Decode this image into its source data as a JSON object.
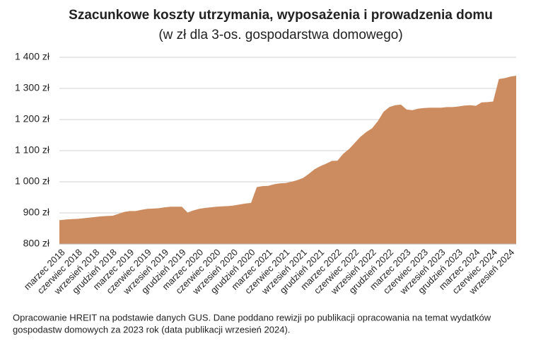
{
  "chart_data": {
    "type": "area",
    "title": "Szacunkowe koszty utrzymania, wyposażenia i prowadzenia domu",
    "subtitle": "(w zł dla 3-os. gospodarstwa domowego)",
    "note": "Opracowanie HREIT na podstawie danych GUS. Dane poddano rewizji po publikacji opracowania na temat wydatków gospodastw domowych za 2023 rok (data publikacji wrzesień 2024).",
    "categories": [
      "marzec 2018",
      null,
      null,
      "czerwiec 2018",
      null,
      null,
      "wrzesień 2018",
      null,
      null,
      "grudzień 2018",
      null,
      null,
      "marzec 2019",
      null,
      null,
      "czerwiec 2019",
      null,
      null,
      "wrzesień 2019",
      null,
      null,
      "grudzień 2019",
      null,
      null,
      "marzec 2020",
      null,
      null,
      "czerwiec 2020",
      null,
      null,
      "wrzesień 2020",
      null,
      null,
      "grudzień 2020",
      null,
      null,
      "marzec 2021",
      null,
      null,
      "czerwiec 2021",
      null,
      null,
      "wrzesień 2021",
      null,
      null,
      "grudzień 2021",
      null,
      null,
      "marzec 2022",
      null,
      null,
      "czerwiec 2022",
      null,
      null,
      "wrzesień 2022",
      null,
      null,
      "grudzień 2022",
      null,
      null,
      "marzec 2023",
      null,
      null,
      "czerwiec 2023",
      null,
      null,
      "wrzesień 2023",
      null,
      null,
      "grudzień 2023",
      null,
      null,
      "marzec 2024",
      null,
      null,
      "czerwiec 2024",
      null,
      null,
      "wrzesień 2024",
      null
    ],
    "values": [
      877,
      879,
      880,
      881,
      883,
      885,
      887,
      889,
      890,
      891,
      897,
      903,
      906,
      906,
      910,
      913,
      914,
      915,
      918,
      920,
      920,
      920,
      901,
      908,
      913,
      916,
      918,
      920,
      921,
      922,
      924,
      927,
      930,
      932,
      983,
      986,
      987,
      992,
      995,
      996,
      1000,
      1005,
      1012,
      1025,
      1040,
      1050,
      1058,
      1067,
      1068,
      1090,
      1105,
      1125,
      1145,
      1160,
      1172,
      1195,
      1225,
      1240,
      1246,
      1248,
      1232,
      1230,
      1235,
      1237,
      1238,
      1238,
      1238,
      1240,
      1240,
      1242,
      1245,
      1246,
      1244,
      1255,
      1256,
      1258,
      1330,
      1333,
      1338,
      1341
    ],
    "color": "#cd8c60",
    "ylim": [
      800,
      1400
    ],
    "yticks": [
      {
        "value": 800,
        "label": "800 zł"
      },
      {
        "value": 900,
        "label": "900 zł"
      },
      {
        "value": 1000,
        "label": "1 000 zł"
      },
      {
        "value": 1100,
        "label": "1 100 zł"
      },
      {
        "value": 1200,
        "label": "1 200 zł"
      },
      {
        "value": 1300,
        "label": "1 300 zł"
      },
      {
        "value": 1400,
        "label": "1 400 zł"
      }
    ],
    "grid": true
  }
}
